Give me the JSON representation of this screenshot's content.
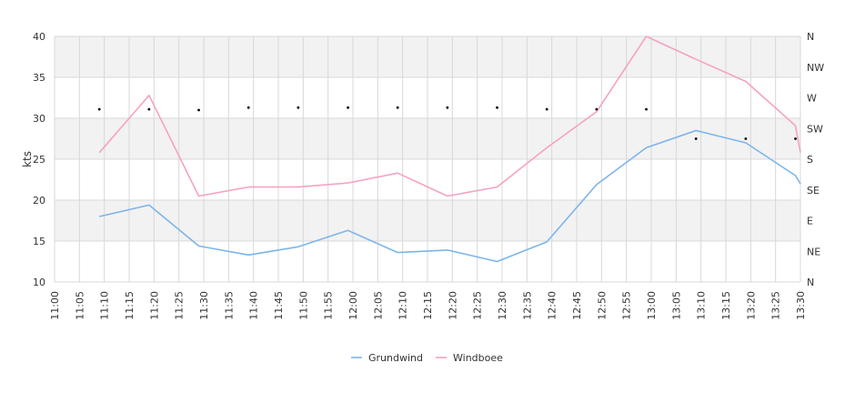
{
  "chart_data": {
    "type": "line",
    "ylabel": "kts",
    "ylim": [
      10,
      40
    ],
    "yticks": [
      10,
      15,
      20,
      25,
      30,
      35,
      40
    ],
    "right_axis_labels": [
      "N",
      "NE",
      "E",
      "SE",
      "S",
      "SW",
      "W",
      "NW",
      "N"
    ],
    "xticks": [
      "11:00",
      "11:05",
      "11:10",
      "11:15",
      "11:20",
      "11:25",
      "11:30",
      "11:35",
      "11:40",
      "11:45",
      "11:50",
      "11:55",
      "12:00",
      "12:05",
      "12:10",
      "12:15",
      "12:20",
      "12:25",
      "12:30",
      "12:35",
      "12:40",
      "12:45",
      "12:50",
      "12:55",
      "13:00",
      "13:05",
      "13:10",
      "13:15",
      "13:20",
      "13:25",
      "13:30"
    ],
    "grid": true,
    "legend_position": "bottom",
    "series": [
      {
        "name": "Grundwind",
        "color": "#7cb5ec",
        "points": [
          [
            "11:09",
            18.0
          ],
          [
            "11:19",
            19.4
          ],
          [
            "11:29",
            14.4
          ],
          [
            "11:39",
            13.3
          ],
          [
            "11:49",
            14.3
          ],
          [
            "11:59",
            16.3
          ],
          [
            "12:09",
            13.6
          ],
          [
            "12:19",
            13.9
          ],
          [
            "12:29",
            12.5
          ],
          [
            "12:39",
            14.9
          ],
          [
            "12:49",
            21.9
          ],
          [
            "12:59",
            26.4
          ],
          [
            "13:09",
            28.5
          ],
          [
            "13:19",
            27.0
          ],
          [
            "13:29",
            23.0
          ],
          [
            "13:30",
            22.0
          ]
        ]
      },
      {
        "name": "Windboee",
        "color": "#f7a1c4",
        "points": [
          [
            "11:09",
            25.8
          ],
          [
            "11:19",
            32.8
          ],
          [
            "11:29",
            20.5
          ],
          [
            "11:39",
            21.6
          ],
          [
            "11:49",
            21.6
          ],
          [
            "11:59",
            22.1
          ],
          [
            "12:09",
            23.3
          ],
          [
            "12:19",
            20.5
          ],
          [
            "12:29",
            21.6
          ],
          [
            "12:39",
            26.4
          ],
          [
            "12:49",
            30.8
          ],
          [
            "12:59",
            40.0
          ],
          [
            "13:09",
            37.2
          ],
          [
            "13:19",
            34.5
          ],
          [
            "13:29",
            29.1
          ],
          [
            "13:30",
            25.8
          ]
        ]
      }
    ],
    "direction_markers": [
      {
        "time": "11:09",
        "value": 31.1
      },
      {
        "time": "11:19",
        "value": 31.1
      },
      {
        "time": "11:29",
        "value": 31.0
      },
      {
        "time": "11:39",
        "value": 31.3
      },
      {
        "time": "11:49",
        "value": 31.3
      },
      {
        "time": "11:59",
        "value": 31.3
      },
      {
        "time": "12:09",
        "value": 31.3
      },
      {
        "time": "12:19",
        "value": 31.3
      },
      {
        "time": "12:29",
        "value": 31.3
      },
      {
        "time": "12:39",
        "value": 31.1
      },
      {
        "time": "12:49",
        "value": 31.1
      },
      {
        "time": "12:59",
        "value": 31.1
      },
      {
        "time": "13:09",
        "value": 27.5
      },
      {
        "time": "13:19",
        "value": 27.5
      },
      {
        "time": "13:29",
        "value": 27.5
      }
    ]
  },
  "colors": {
    "band": "#f2f2f2",
    "grid": "#d8d8d8",
    "marker": "#000000"
  }
}
